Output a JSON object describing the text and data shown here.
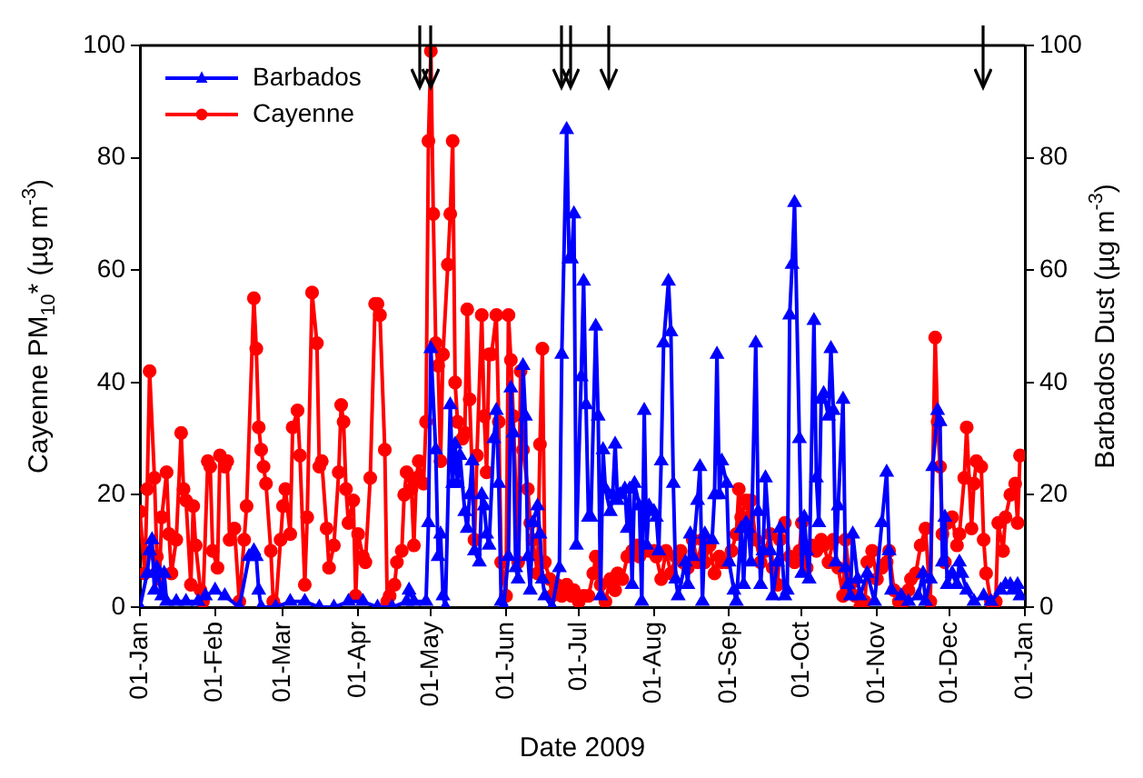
{
  "chart_data": {
    "type": "line",
    "xlabel": "Date 2009",
    "ylabel": "Cayenne PM$_{10}$* (µg m$^{-3}$)",
    "y2label": "Barbados Dust (µg m$^{-3}$)",
    "xlim": [
      "2009-01-01",
      "2010-01-01"
    ],
    "xticks": [
      {
        "value": "2009-01-01",
        "label": "01-Jan"
      },
      {
        "value": "2009-02-01",
        "label": "01-Feb"
      },
      {
        "value": "2009-03-01",
        "label": "01-Mar"
      },
      {
        "value": "2009-04-01",
        "label": "01-Apr"
      },
      {
        "value": "2009-05-01",
        "label": "01-May"
      },
      {
        "value": "2009-06-01",
        "label": "01-Jun"
      },
      {
        "value": "2009-07-01",
        "label": "01-Jul"
      },
      {
        "value": "2009-08-01",
        "label": "01-Aug"
      },
      {
        "value": "2009-09-01",
        "label": "01-Sep"
      },
      {
        "value": "2009-10-01",
        "label": "01-Oct"
      },
      {
        "value": "2009-11-01",
        "label": "01-Nov"
      },
      {
        "value": "2009-12-01",
        "label": "01-Dec"
      },
      {
        "value": "2010-01-01",
        "label": "01-Jan"
      }
    ],
    "ylim": [
      0,
      100
    ],
    "yticks": [
      0,
      20,
      40,
      60,
      80,
      100
    ],
    "y2lim": [
      0,
      100
    ],
    "y2ticks": [
      0,
      20,
      40,
      60,
      80,
      100
    ],
    "legend": "top left",
    "series": [
      {
        "name": "Barbados",
        "color": "#0000ff",
        "marker": "triangle",
        "x": [
          "2009-01-01",
          "2009-01-04",
          "2009-01-05",
          "2009-01-06",
          "2009-01-07",
          "2009-01-08",
          "2009-01-10",
          "2009-01-11",
          "2009-01-12",
          "2009-01-16",
          "2009-01-20",
          "2009-01-25",
          "2009-01-28",
          "2009-02-01",
          "2009-02-05",
          "2009-02-11",
          "2009-02-15",
          "2009-02-17",
          "2009-02-18",
          "2009-02-19",
          "2009-02-20",
          "2009-02-26",
          "2009-03-04",
          "2009-03-10",
          "2009-03-16",
          "2009-03-22",
          "2009-03-28",
          "2009-04-03",
          "2009-04-09",
          "2009-04-15",
          "2009-04-21",
          "2009-04-22",
          "2009-04-24",
          "2009-04-29",
          "2009-04-30",
          "2009-05-01",
          "2009-05-03",
          "2009-05-04",
          "2009-05-05",
          "2009-05-06",
          "2009-05-07",
          "2009-05-09",
          "2009-05-10",
          "2009-05-11",
          "2009-05-12",
          "2009-05-13",
          "2009-05-15",
          "2009-05-16",
          "2009-05-17",
          "2009-05-18",
          "2009-05-19",
          "2009-05-21",
          "2009-05-22",
          "2009-05-23",
          "2009-05-24",
          "2009-05-25",
          "2009-05-27",
          "2009-05-28",
          "2009-05-29",
          "2009-05-30",
          "2009-05-31",
          "2009-06-02",
          "2009-06-03",
          "2009-06-04",
          "2009-06-05",
          "2009-06-06",
          "2009-06-08",
          "2009-06-09",
          "2009-06-10",
          "2009-06-11",
          "2009-06-12",
          "2009-06-14",
          "2009-06-15",
          "2009-06-16",
          "2009-06-17",
          "2009-06-20",
          "2009-06-23",
          "2009-06-24",
          "2009-06-26",
          "2009-06-27",
          "2009-06-28",
          "2009-06-29",
          "2009-06-30",
          "2009-07-02",
          "2009-07-03",
          "2009-07-04",
          "2009-07-05",
          "2009-07-06",
          "2009-07-08",
          "2009-07-09",
          "2009-07-10",
          "2009-07-11",
          "2009-07-12",
          "2009-07-14",
          "2009-07-15",
          "2009-07-16",
          "2009-07-17",
          "2009-07-18",
          "2009-07-20",
          "2009-07-21",
          "2009-07-22",
          "2009-07-23",
          "2009-07-24",
          "2009-07-26",
          "2009-07-27",
          "2009-07-28",
          "2009-07-29",
          "2009-07-30",
          "2009-08-01",
          "2009-08-02",
          "2009-08-03",
          "2009-08-04",
          "2009-08-05",
          "2009-08-07",
          "2009-08-08",
          "2009-08-09",
          "2009-08-10",
          "2009-08-11",
          "2009-08-14",
          "2009-08-15",
          "2009-08-16",
          "2009-08-17",
          "2009-08-19",
          "2009-08-20",
          "2009-08-21",
          "2009-08-22",
          "2009-08-25",
          "2009-08-26",
          "2009-08-27",
          "2009-08-28",
          "2009-08-29",
          "2009-08-31",
          "2009-09-01",
          "2009-09-03",
          "2009-09-04",
          "2009-09-06",
          "2009-09-07",
          "2009-09-08",
          "2009-09-09",
          "2009-09-10",
          "2009-09-12",
          "2009-09-13",
          "2009-09-14",
          "2009-09-15",
          "2009-09-16",
          "2009-09-18",
          "2009-09-19",
          "2009-09-21",
          "2009-09-22",
          "2009-09-24",
          "2009-09-25",
          "2009-09-26",
          "2009-09-27",
          "2009-09-28",
          "2009-09-30",
          "2009-10-01",
          "2009-10-02",
          "2009-10-03",
          "2009-10-04",
          "2009-10-06",
          "2009-10-07",
          "2009-10-08",
          "2009-10-09",
          "2009-10-10",
          "2009-10-12",
          "2009-10-13",
          "2009-10-14",
          "2009-10-15",
          "2009-10-16",
          "2009-10-18",
          "2009-10-19",
          "2009-10-20",
          "2009-10-21",
          "2009-10-22",
          "2009-10-24",
          "2009-10-25",
          "2009-10-28",
          "2009-10-31",
          "2009-11-03",
          "2009-11-05",
          "2009-11-06",
          "2009-11-07",
          "2009-11-11",
          "2009-11-14",
          "2009-11-18",
          "2009-11-20",
          "2009-11-21",
          "2009-11-23",
          "2009-11-24",
          "2009-11-26",
          "2009-11-27",
          "2009-11-28",
          "2009-11-29",
          "2009-11-30",
          "2009-12-02",
          "2009-12-04",
          "2009-12-05",
          "2009-12-06",
          "2009-12-08",
          "2009-12-11",
          "2009-12-15",
          "2009-12-18",
          "2009-12-22",
          "2009-12-24",
          "2009-12-26",
          "2009-12-27",
          "2009-12-29",
          "2009-12-30"
        ],
        "values": [
          0,
          6,
          10,
          12,
          3,
          7,
          2,
          6,
          1,
          1,
          1,
          1,
          2,
          3,
          2,
          0,
          9,
          10,
          9,
          3,
          0,
          0,
          1,
          1,
          0,
          0,
          1,
          1,
          0,
          0,
          1,
          3,
          1,
          1,
          15,
          46,
          28,
          9,
          13,
          2,
          0,
          36,
          22,
          29,
          22,
          27,
          17,
          14,
          20,
          26,
          10,
          8,
          20,
          18,
          13,
          11,
          30,
          35,
          22,
          1,
          0,
          9,
          39,
          31,
          7,
          5,
          43,
          34,
          9,
          3,
          15,
          18,
          13,
          5,
          2,
          0,
          7,
          45,
          85,
          62,
          62,
          70,
          11,
          41,
          58,
          36,
          16,
          16,
          50,
          34,
          2,
          28,
          21,
          17,
          20,
          29,
          19,
          20,
          21,
          14,
          21,
          4,
          22,
          18,
          1,
          35,
          11,
          18,
          17,
          16,
          10,
          26,
          47,
          58,
          49,
          22,
          5,
          2,
          8,
          4,
          13,
          9,
          19,
          25,
          1,
          13,
          12,
          20,
          45,
          20,
          26,
          22,
          8,
          3,
          1,
          14,
          4,
          15,
          14,
          8,
          47,
          17,
          4,
          10,
          23,
          10,
          2,
          8,
          14,
          2,
          3,
          52,
          61,
          72,
          30,
          6,
          16,
          10,
          5,
          51,
          23,
          15,
          37,
          38,
          34,
          46,
          35,
          8,
          18,
          37,
          7,
          4,
          2,
          13,
          5,
          2,
          6,
          1,
          15,
          24,
          10,
          3,
          2,
          1,
          2,
          6,
          1,
          5,
          25,
          35,
          33,
          8,
          16,
          4,
          6,
          4,
          8,
          6,
          3,
          1,
          2,
          1,
          3,
          4,
          4,
          3,
          4,
          2
        ]
      },
      {
        "name": "Cayenne",
        "color": "#ff0000",
        "marker": "circle",
        "x": [
          "2009-01-01",
          "2009-01-03",
          "2009-01-04",
          "2009-01-05",
          "2009-01-07",
          "2009-01-08",
          "2009-01-09",
          "2009-01-10",
          "2009-01-12",
          "2009-01-13",
          "2009-01-14",
          "2009-01-16",
          "2009-01-18",
          "2009-01-19",
          "2009-01-20",
          "2009-01-22",
          "2009-01-23",
          "2009-01-24",
          "2009-01-26",
          "2009-01-27",
          "2009-01-29",
          "2009-01-30",
          "2009-01-31",
          "2009-02-02",
          "2009-02-03",
          "2009-02-05",
          "2009-02-06",
          "2009-02-07",
          "2009-02-09",
          "2009-02-11",
          "2009-02-13",
          "2009-02-14",
          "2009-02-17",
          "2009-02-18",
          "2009-02-19",
          "2009-02-20",
          "2009-02-21",
          "2009-02-22",
          "2009-02-24",
          "2009-02-25",
          "2009-02-26",
          "2009-02-28",
          "2009-03-01",
          "2009-03-02",
          "2009-03-04",
          "2009-03-05",
          "2009-03-07",
          "2009-03-08",
          "2009-03-10",
          "2009-03-11",
          "2009-03-13",
          "2009-03-15",
          "2009-03-16",
          "2009-03-17",
          "2009-03-19",
          "2009-03-20",
          "2009-03-22",
          "2009-03-24",
          "2009-03-25",
          "2009-03-26",
          "2009-03-27",
          "2009-03-28",
          "2009-03-30",
          "2009-03-31",
          "2009-04-01",
          "2009-04-03",
          "2009-04-04",
          "2009-04-06",
          "2009-04-08",
          "2009-04-09",
          "2009-04-10",
          "2009-04-12",
          "2009-04-13",
          "2009-04-14",
          "2009-04-16",
          "2009-04-17",
          "2009-04-19",
          "2009-04-20",
          "2009-04-21",
          "2009-04-23",
          "2009-04-24",
          "2009-04-25",
          "2009-04-26",
          "2009-04-28",
          "2009-04-29",
          "2009-04-30",
          "2009-05-01",
          "2009-05-02",
          "2009-05-03",
          "2009-05-04",
          "2009-05-05",
          "2009-05-06",
          "2009-05-08",
          "2009-05-09",
          "2009-05-10",
          "2009-05-11",
          "2009-05-12",
          "2009-05-14",
          "2009-05-15",
          "2009-05-16",
          "2009-05-17",
          "2009-05-19",
          "2009-05-20",
          "2009-05-22",
          "2009-05-23",
          "2009-05-24",
          "2009-05-25",
          "2009-05-26",
          "2009-05-28",
          "2009-05-29",
          "2009-05-30",
          "2009-06-01",
          "2009-06-02",
          "2009-06-03",
          "2009-06-04",
          "2009-06-06",
          "2009-06-07",
          "2009-06-08",
          "2009-06-10",
          "2009-06-11",
          "2009-06-12",
          "2009-06-14",
          "2009-06-15",
          "2009-06-16",
          "2009-06-17",
          "2009-06-19",
          "2009-06-20",
          "2009-06-22",
          "2009-06-24",
          "2009-06-26",
          "2009-06-28",
          "2009-06-29",
          "2009-07-01",
          "2009-07-03",
          "2009-07-05",
          "2009-07-07",
          "2009-07-08",
          "2009-07-10",
          "2009-07-12",
          "2009-07-14",
          "2009-07-16",
          "2009-07-17",
          "2009-07-19",
          "2009-07-21",
          "2009-07-23",
          "2009-07-25",
          "2009-07-26",
          "2009-07-28",
          "2009-07-30",
          "2009-08-01",
          "2009-08-02",
          "2009-08-04",
          "2009-08-06",
          "2009-08-08",
          "2009-08-10",
          "2009-08-12",
          "2009-08-13",
          "2009-08-15",
          "2009-08-17",
          "2009-08-19",
          "2009-08-21",
          "2009-08-22",
          "2009-08-24",
          "2009-08-26",
          "2009-08-28",
          "2009-08-29",
          "2009-08-31",
          "2009-09-02",
          "2009-09-04",
          "2009-09-05",
          "2009-09-06",
          "2009-09-08",
          "2009-09-09",
          "2009-09-10",
          "2009-09-12",
          "2009-09-14",
          "2009-09-16",
          "2009-09-18",
          "2009-09-19",
          "2009-09-21",
          "2009-09-22",
          "2009-09-24",
          "2009-09-26",
          "2009-09-28",
          "2009-09-30",
          "2009-10-01",
          "2009-10-03",
          "2009-10-05",
          "2009-10-07",
          "2009-10-09",
          "2009-10-10",
          "2009-10-12",
          "2009-10-14",
          "2009-10-16",
          "2009-10-18",
          "2009-10-19",
          "2009-10-21",
          "2009-10-23",
          "2009-10-25",
          "2009-10-27",
          "2009-10-28",
          "2009-10-30",
          "2009-11-01",
          "2009-11-03",
          "2009-11-05",
          "2009-11-06",
          "2009-11-08",
          "2009-11-10",
          "2009-11-12",
          "2009-11-14",
          "2009-11-15",
          "2009-11-17",
          "2009-11-19",
          "2009-11-21",
          "2009-11-23",
          "2009-11-25",
          "2009-11-26",
          "2009-11-27",
          "2009-11-28",
          "2009-11-29",
          "2009-11-30",
          "2009-12-02",
          "2009-12-04",
          "2009-12-05",
          "2009-12-07",
          "2009-12-08",
          "2009-12-10",
          "2009-12-11",
          "2009-12-12",
          "2009-12-14",
          "2009-12-15",
          "2009-12-16",
          "2009-12-18",
          "2009-12-20",
          "2009-12-21",
          "2009-12-23",
          "2009-12-24",
          "2009-12-26",
          "2009-12-28",
          "2009-12-29",
          "2009-12-30"
        ],
        "values": [
          17,
          6,
          21,
          42,
          23,
          9,
          5,
          16,
          24,
          13,
          6,
          12,
          31,
          21,
          19,
          4,
          18,
          11,
          3,
          1,
          26,
          25,
          10,
          7,
          27,
          25,
          26,
          12,
          14,
          1,
          12,
          18,
          55,
          46,
          32,
          28,
          25,
          22,
          10,
          1,
          0,
          12,
          18,
          21,
          13,
          32,
          35,
          27,
          4,
          16,
          56,
          47,
          25,
          26,
          14,
          7,
          11,
          24,
          36,
          33,
          21,
          15,
          19,
          2,
          13,
          9,
          8,
          23,
          54,
          54,
          52,
          28,
          1,
          2,
          4,
          8,
          10,
          20,
          24,
          21,
          11,
          23,
          26,
          22,
          33,
          83,
          99,
          70,
          47,
          43,
          26,
          45,
          61,
          70,
          83,
          40,
          33,
          30,
          31,
          53,
          37,
          12,
          27,
          52,
          34,
          24,
          45,
          45,
          52,
          33,
          8,
          2,
          52,
          44,
          34,
          8,
          42,
          28,
          21,
          15,
          12,
          6,
          29,
          46,
          8,
          5,
          2,
          4,
          2,
          4,
          2,
          3,
          1,
          2,
          2,
          6,
          9,
          4,
          1,
          5,
          3,
          6,
          5,
          9,
          10,
          11,
          9,
          10,
          10,
          10,
          9,
          5,
          10,
          6,
          9,
          10,
          8,
          7,
          12,
          8,
          12,
          8,
          11,
          6,
          9,
          8,
          8,
          10,
          13,
          21,
          16,
          19,
          16,
          19,
          12,
          8,
          10,
          13,
          7,
          4,
          12,
          15,
          9,
          8,
          10,
          15,
          7,
          11,
          10,
          12,
          11,
          8,
          12,
          7,
          2,
          12,
          4,
          2,
          0,
          1,
          8,
          10,
          5,
          7,
          8,
          10,
          3,
          1,
          1,
          3,
          5,
          6,
          11,
          14,
          1,
          48,
          33,
          25,
          13,
          8,
          15,
          16,
          11,
          13,
          23,
          32,
          14,
          22,
          26,
          25,
          12,
          6,
          1,
          1,
          15,
          10,
          16,
          20,
          22,
          15,
          27
        ]
      }
    ]
  }
}
